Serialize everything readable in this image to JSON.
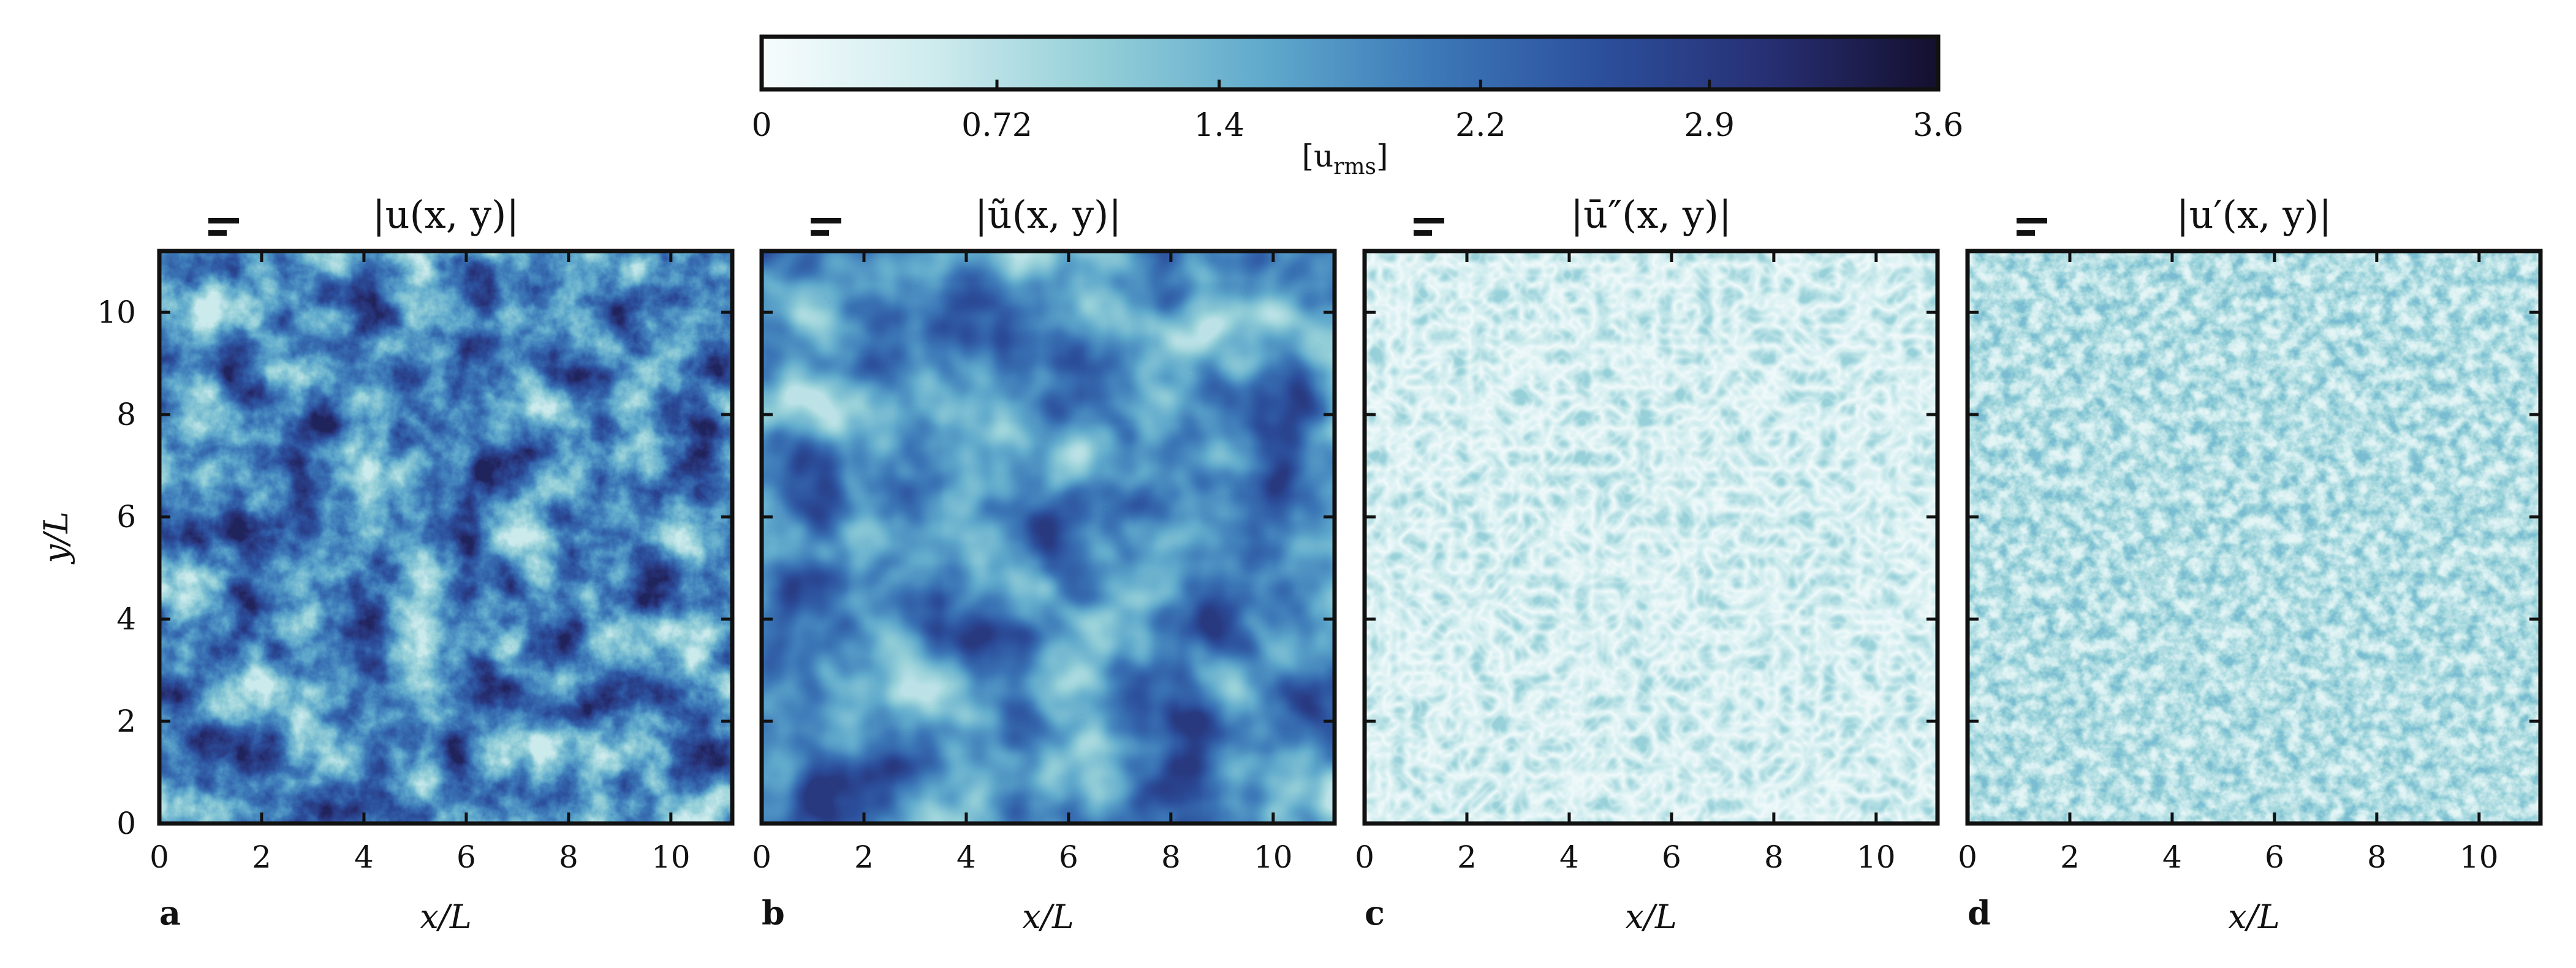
{
  "colorbar": {
    "ticks": [
      "0",
      "0.72",
      "1.4",
      "2.2",
      "2.9",
      "3.6"
    ],
    "tick_values": [
      0,
      0.72,
      1.4,
      2.2,
      2.9,
      3.6
    ],
    "range": [
      0,
      3.6
    ],
    "unit_label": "[u",
    "unit_sub": "rms",
    "unit_close": "]",
    "colormap": [
      "#f7fcfd",
      "#cfecee",
      "#94cfd8",
      "#5fa9cc",
      "#3c78b8",
      "#2c4f9c",
      "#272f73",
      "#140f2e"
    ]
  },
  "chart_data": [
    {
      "type": "heatmap",
      "panel": "a",
      "title": "|u(x, y)|",
      "xlabel": "x/L",
      "ylabel": "y/L",
      "xlim": [
        0,
        11.2
      ],
      "ylim": [
        0,
        11.2
      ],
      "xticks": [
        0,
        2,
        4,
        6,
        8,
        10
      ],
      "yticks": [
        0,
        2,
        4,
        6,
        8,
        10
      ],
      "mean_level": 1.9,
      "fluctuation": 0.9,
      "field_scale": "fine multiscale turbulence"
    },
    {
      "type": "heatmap",
      "panel": "b",
      "title": "|ũ(x, y)|",
      "xlabel": "x/L",
      "ylabel": "",
      "xlim": [
        0,
        11.2
      ],
      "ylim": [
        0,
        11.2
      ],
      "xticks": [
        0,
        2,
        4,
        6,
        8,
        10
      ],
      "yticks": [
        0,
        2,
        4,
        6,
        8,
        10
      ],
      "mean_level": 1.8,
      "fluctuation": 0.75,
      "field_scale": "smooth large scale"
    },
    {
      "type": "heatmap",
      "panel": "c",
      "title": "|ū″(x, y)|",
      "xlabel": "x/L",
      "ylabel": "",
      "xlim": [
        0,
        11.2
      ],
      "ylim": [
        0,
        11.2
      ],
      "xticks": [
        0,
        2,
        4,
        6,
        8,
        10
      ],
      "yticks": [
        0,
        2,
        4,
        6,
        8,
        10
      ],
      "mean_level": 0.55,
      "fluctuation": 0.3,
      "field_scale": "intermediate scale"
    },
    {
      "type": "heatmap",
      "panel": "d",
      "title": "|u′(x, y)|",
      "xlabel": "x/L",
      "ylabel": "",
      "xlim": [
        0,
        11.2
      ],
      "ylim": [
        0,
        11.2
      ],
      "xticks": [
        0,
        2,
        4,
        6,
        8,
        10
      ],
      "yticks": [
        0,
        2,
        4,
        6,
        8,
        10
      ],
      "mean_level": 0.75,
      "fluctuation": 0.35,
      "field_scale": "fine small scale"
    }
  ]
}
